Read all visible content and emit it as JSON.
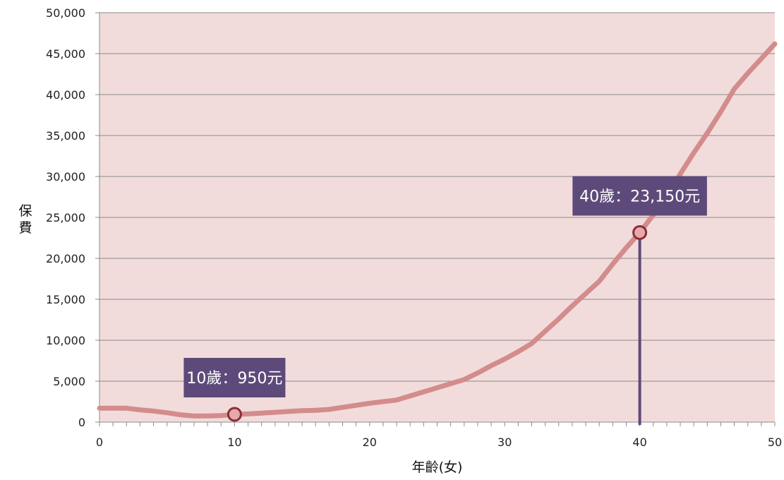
{
  "chart_data": {
    "type": "line",
    "xlabel": "年齡(女)",
    "ylabel": "保費",
    "xlim": [
      0,
      50
    ],
    "ylim": [
      0,
      50000
    ],
    "xticks": [
      0,
      10,
      20,
      30,
      40,
      50
    ],
    "yticks": [
      0,
      5000,
      10000,
      15000,
      20000,
      25000,
      30000,
      35000,
      40000,
      45000,
      50000
    ],
    "ytick_labels": [
      "0",
      "5,000",
      "10,000",
      "15,000",
      "20,000",
      "25,000",
      "30,000",
      "35,000",
      "40,000",
      "45,000",
      "50,000"
    ],
    "grid": true,
    "series": [
      {
        "color": "#d38c8c",
        "x": [
          0,
          1,
          2,
          3,
          4,
          5,
          6,
          7,
          8,
          9,
          10,
          11,
          12,
          13,
          14,
          15,
          16,
          17,
          18,
          19,
          20,
          21,
          22,
          23,
          24,
          25,
          26,
          27,
          28,
          29,
          30,
          31,
          32,
          33,
          34,
          35,
          36,
          37,
          38,
          39,
          40,
          41,
          42,
          43,
          44,
          45,
          46,
          47,
          48,
          49,
          50
        ],
        "y": [
          1700,
          1700,
          1700,
          1500,
          1350,
          1150,
          900,
          750,
          750,
          800,
          950,
          1000,
          1100,
          1200,
          1300,
          1400,
          1450,
          1550,
          1800,
          2050,
          2300,
          2500,
          2700,
          3200,
          3700,
          4200,
          4700,
          5200,
          6000,
          6900,
          7700,
          8600,
          9600,
          11100,
          12600,
          14200,
          15700,
          17200,
          19300,
          21300,
          23150,
          25300,
          27600,
          30300,
          32900,
          35300,
          37900,
          40700,
          42600,
          44400,
          46200
        ]
      }
    ],
    "highlights": [
      {
        "x": 10,
        "y": 950,
        "label": "10歲：950元",
        "color": "#5d4a7a",
        "drop_line": false
      },
      {
        "x": 40,
        "y": 23150,
        "label": "40歲：23,150元",
        "color": "#5d4a7a",
        "drop_line": true
      }
    ],
    "colors": {
      "plot_background": "#f2dcdb",
      "gridline": "#8a8a8a",
      "line": "#d38c8c",
      "marker_fill": "#e6a9a9",
      "marker_edge": "#8b2d3a",
      "callout": "#5d4a7a"
    }
  }
}
